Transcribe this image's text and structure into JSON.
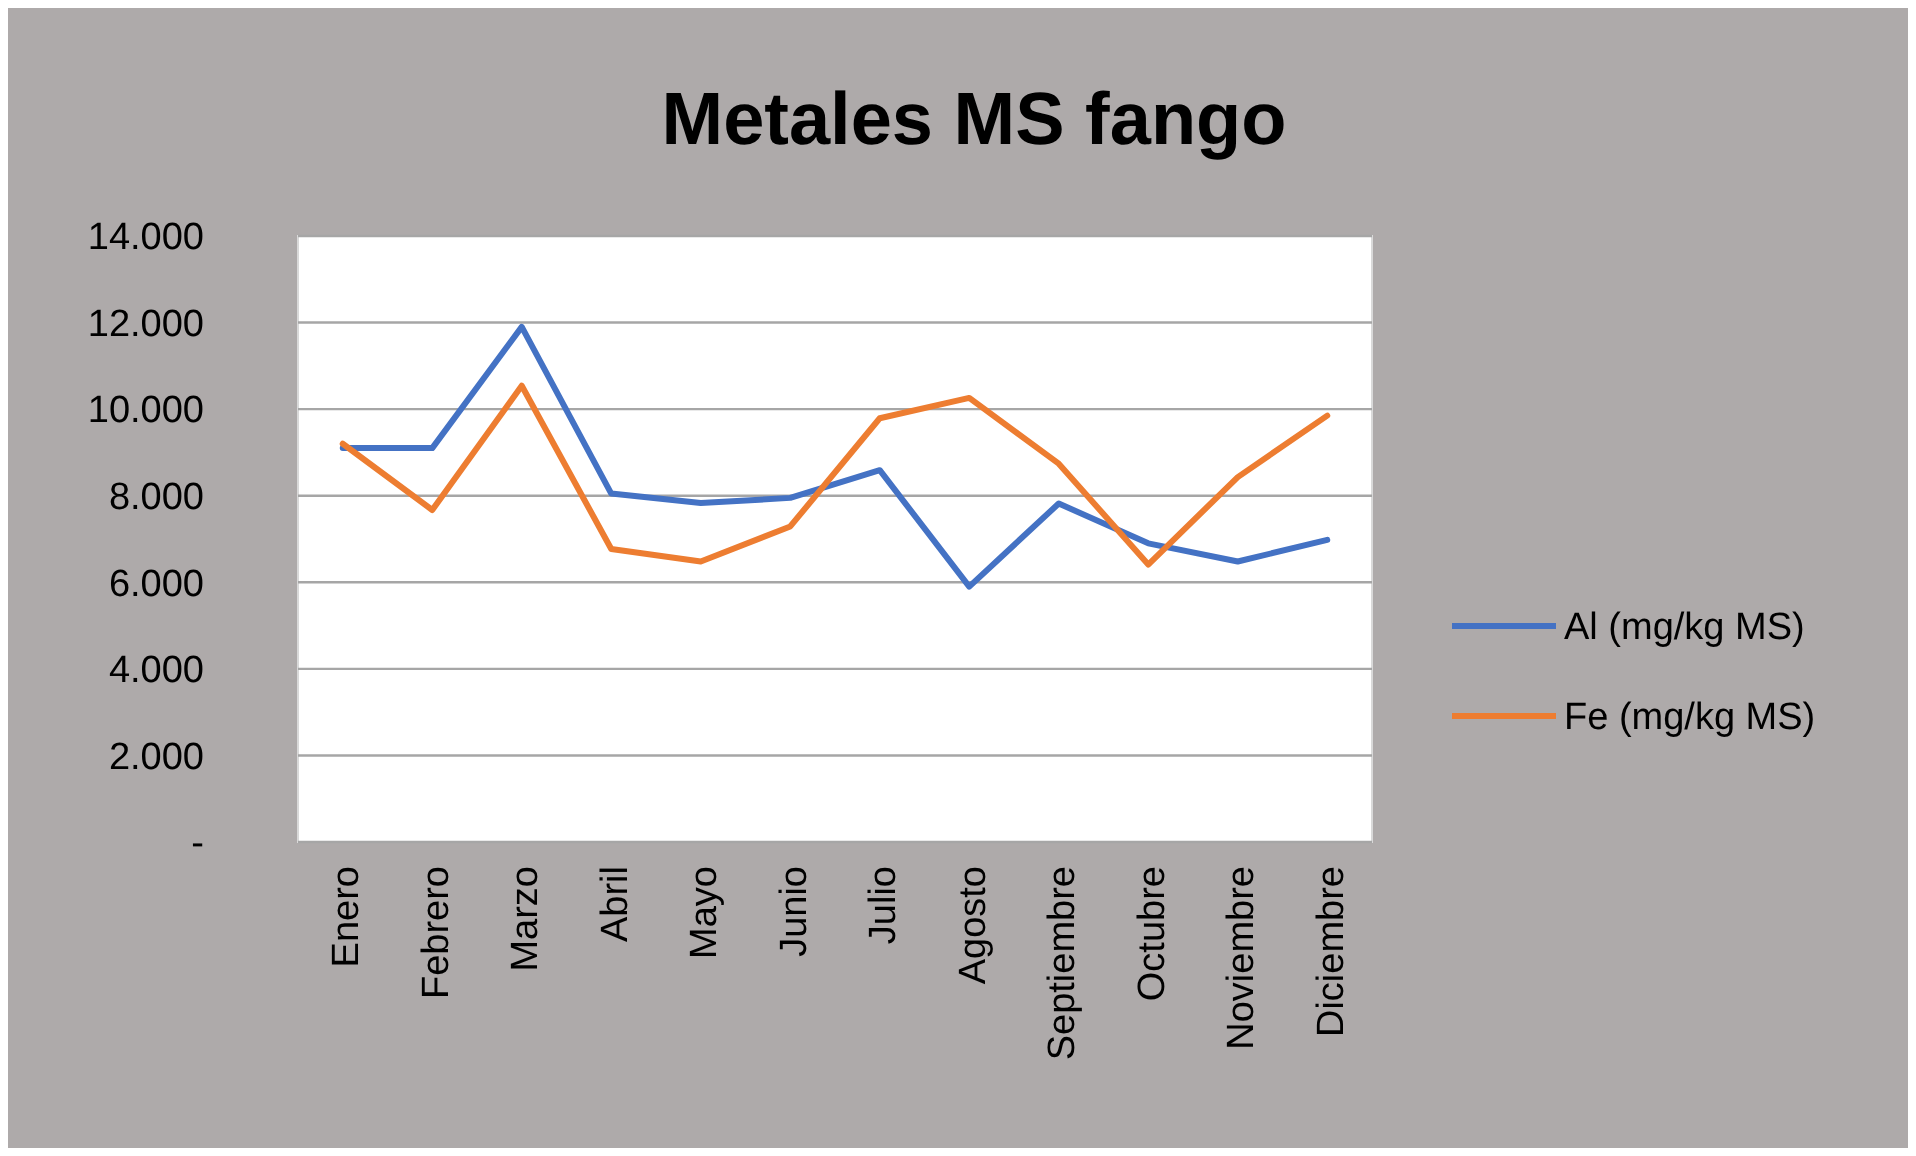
{
  "chart_data": {
    "type": "line",
    "title": "Metales MS fango",
    "categories": [
      "Enero",
      "Febrero",
      "Marzo",
      "Abril",
      "Mayo",
      "Junio",
      "Julio",
      "Agosto",
      "Septiembre",
      "Octubre",
      "Noviembre",
      "Diciembre"
    ],
    "series": [
      {
        "name": "Al (mg/kg MS)",
        "color": "#4472c4",
        "values": [
          9100,
          9100,
          11900,
          8050,
          7830,
          7950,
          8590,
          5900,
          7820,
          6900,
          6480,
          6980
        ]
      },
      {
        "name": "Fe (mg/kg MS)",
        "color": "#ed7d31",
        "values": [
          9200,
          7670,
          10540,
          6770,
          6480,
          7290,
          9790,
          10260,
          8740,
          6410,
          8430,
          9850
        ]
      }
    ],
    "ylim": [
      0,
      14000
    ],
    "yticks": [
      {
        "value": 0,
        "label": "-"
      },
      {
        "value": 2000,
        "label": "2.000"
      },
      {
        "value": 4000,
        "label": "4.000"
      },
      {
        "value": 6000,
        "label": "6.000"
      },
      {
        "value": 8000,
        "label": "8.000"
      },
      {
        "value": 10000,
        "label": "10.000"
      },
      {
        "value": 12000,
        "label": "12.000"
      },
      {
        "value": 14000,
        "label": "14.000"
      }
    ],
    "grid": "y",
    "legend": "right",
    "marker": "none",
    "line_style": "solid"
  }
}
